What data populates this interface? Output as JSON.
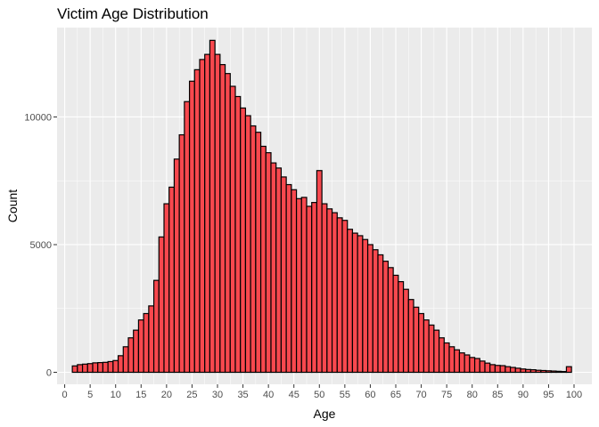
{
  "chart_data": {
    "type": "bar",
    "title": "Victim Age Distribution",
    "xlabel": "Age",
    "ylabel": "Count",
    "xlim": [
      -1.5,
      103.5
    ],
    "ylim": [
      -470,
      13500
    ],
    "x_ticks": [
      0,
      5,
      10,
      15,
      20,
      25,
      30,
      35,
      40,
      45,
      50,
      55,
      60,
      65,
      70,
      75,
      80,
      85,
      90,
      95,
      100
    ],
    "y_ticks": [
      0,
      5000,
      10000
    ],
    "y_tick_labels": [
      "0",
      "5000",
      "10000"
    ],
    "grid": true,
    "bar_fill": "#f8484e",
    "bar_outline": "#000000",
    "bins": {
      "ages": [
        2,
        3,
        4,
        5,
        6,
        7,
        8,
        9,
        10,
        11,
        12,
        13,
        14,
        15,
        16,
        17,
        18,
        19,
        20,
        21,
        22,
        23,
        24,
        25,
        26,
        27,
        28,
        29,
        30,
        31,
        32,
        33,
        34,
        35,
        36,
        37,
        38,
        39,
        40,
        41,
        42,
        43,
        44,
        45,
        46,
        47,
        48,
        49,
        50,
        51,
        52,
        53,
        54,
        55,
        56,
        57,
        58,
        59,
        60,
        61,
        62,
        63,
        64,
        65,
        66,
        67,
        68,
        69,
        70,
        71,
        72,
        73,
        74,
        75,
        76,
        77,
        78,
        79,
        80,
        81,
        82,
        83,
        84,
        85,
        86,
        87,
        88,
        89,
        90,
        91,
        92,
        93,
        94,
        95,
        96,
        97,
        98,
        99
      ],
      "counts": [
        250,
        300,
        320,
        340,
        370,
        380,
        390,
        420,
        460,
        650,
        1000,
        1350,
        1650,
        2050,
        2300,
        2600,
        3600,
        5300,
        6600,
        7250,
        8350,
        9300,
        10600,
        11400,
        11850,
        12250,
        12450,
        13000,
        12450,
        12050,
        11700,
        11200,
        10800,
        10350,
        10050,
        9650,
        9400,
        8850,
        8600,
        8200,
        8000,
        7650,
        7350,
        7150,
        6800,
        6850,
        6500,
        6650,
        7900,
        6600,
        6400,
        6250,
        6050,
        5950,
        5600,
        5450,
        5350,
        5200,
        5000,
        4800,
        4600,
        4350,
        4100,
        3800,
        3550,
        3250,
        2850,
        2550,
        2300,
        2050,
        1850,
        1650,
        1350,
        1150,
        1000,
        880,
        760,
        680,
        580,
        540,
        440,
        360,
        300,
        270,
        260,
        220,
        190,
        160,
        130,
        110,
        100,
        80,
        70,
        60,
        50,
        40,
        30,
        220
      ]
    }
  }
}
